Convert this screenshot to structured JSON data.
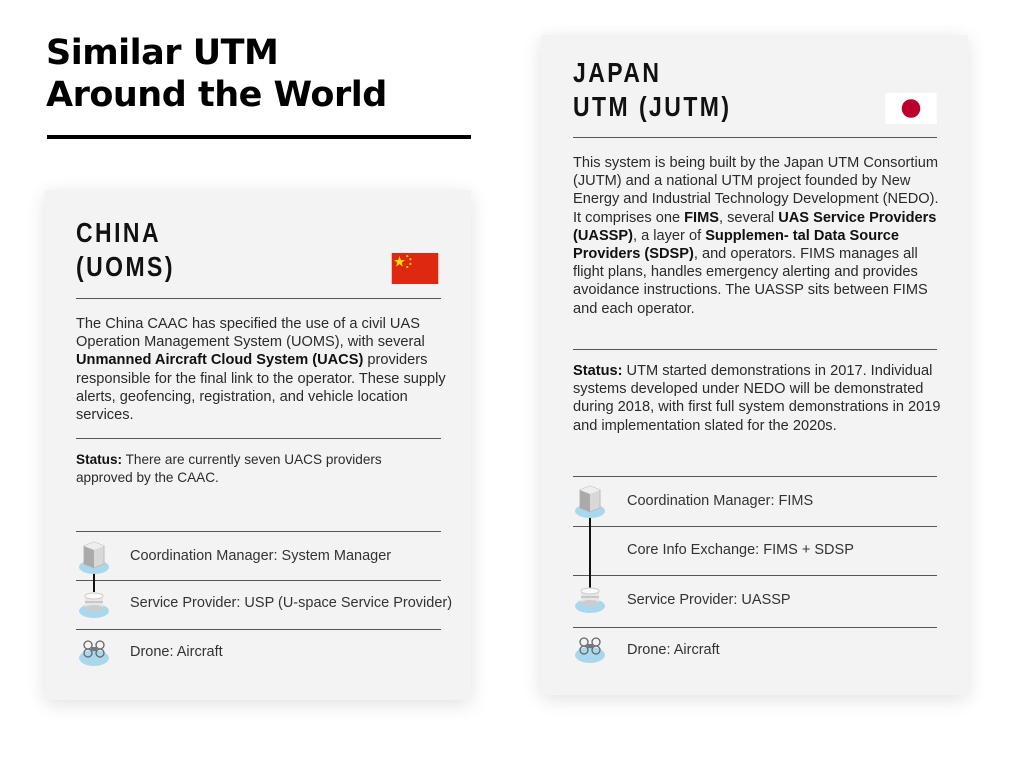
{
  "title": {
    "line1": "Similar UTM",
    "line2": "Around the World"
  },
  "china": {
    "heading": {
      "line1": "CHINA",
      "line2": "(UOMS)"
    },
    "flag": {
      "icon": "china-flag-icon",
      "red": "#de2910",
      "yellow": "#ffde00"
    },
    "description": [
      "The China CAAC has specified the use of a civil UAS Operation Management System (UOMS), with several ",
      "Unmanned Aircraft Cloud System (UACS)",
      " providers responsible for the final link to the operator. These supply alerts, geofencing, registration, and vehicle location services."
    ],
    "status": {
      "label": "Status:",
      "text": " There are currently seven UACS providers approved by the CAAC."
    },
    "rows": [
      {
        "icon": "server-cube-icon",
        "text": "Coordination Manager: System Manager"
      },
      {
        "icon": "database-icon",
        "text": "Service Provider: USP (U-space Service Provider)"
      },
      {
        "icon": "drone-icon",
        "text": "Drone: Aircraft"
      }
    ]
  },
  "japan": {
    "heading": {
      "line1": "JAPAN",
      "line2": "UTM (JUTM)"
    },
    "flag": {
      "icon": "japan-flag-icon",
      "red": "#bc002d",
      "white": "#ffffff"
    },
    "description": [
      "This system is being built by the Japan UTM Consortium (JUTM) and a national UTM project founded by New Energy and Industrial Technology Development (NEDO). It comprises one ",
      "FIMS",
      ", several ",
      "UAS Service Providers (UASSP)",
      ", a layer of ",
      "Supplemen- tal Data Source Providers (SDSP)",
      ", and operators. FIMS manages all flight plans, handles emergency alerting and provides avoidance instructions. The UASSP sits between FIMS and each operator."
    ],
    "status": {
      "label": "Status:",
      "text": " UTM started demonstrations in 2017. Individual systems developed under NEDO will be demonstrated during 2018, with first full system demonstrations in 2019 and implementation slated for the 2020s."
    },
    "rows": [
      {
        "icon": "server-cube-icon",
        "text": "Coordination Manager: FIMS"
      },
      {
        "icon": "",
        "text": "Core Info Exchange: FIMS + SDSP"
      },
      {
        "icon": "database-icon",
        "text": "Service Provider: UASSP"
      },
      {
        "icon": "drone-icon",
        "text": "Drone: Aircraft"
      }
    ]
  },
  "colors": {
    "card": "#f3f3f3",
    "icon_base": "#a9d8ee",
    "rule": "#555555"
  }
}
